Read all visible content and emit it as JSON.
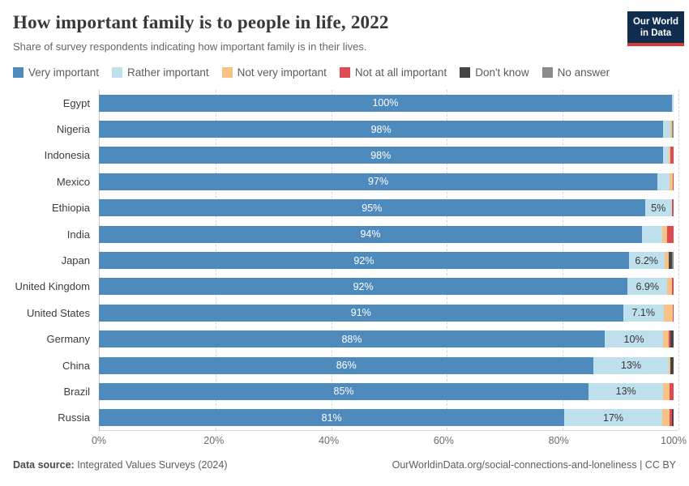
{
  "header": {
    "title": "How important family is to people in life, 2022",
    "subtitle": "Share of survey respondents indicating how important family is in their lives.",
    "logo": {
      "line1": "Our World",
      "line2": "in Data",
      "bg_color": "#102D50",
      "accent_color": "#D73C34"
    }
  },
  "legend": [
    {
      "label": "Very important",
      "color": "#4F8ABD"
    },
    {
      "label": "Rather important",
      "color": "#BEDFEC"
    },
    {
      "label": "Not very important",
      "color": "#FAC184"
    },
    {
      "label": "Not at all important",
      "color": "#DF4B50"
    },
    {
      "label": "Don't know",
      "color": "#454545"
    },
    {
      "label": "No answer",
      "color": "#8B8B8B"
    }
  ],
  "chart_data": {
    "type": "bar",
    "orientation": "horizontal",
    "stacked": true,
    "xlim": [
      0,
      100
    ],
    "grid": "dashed-vertical",
    "x_ticks": [
      {
        "label": "0%",
        "pos": 0
      },
      {
        "label": "20%",
        "pos": 20
      },
      {
        "label": "40%",
        "pos": 40
      },
      {
        "label": "60%",
        "pos": 60
      },
      {
        "label": "80%",
        "pos": 80
      },
      {
        "label": "100%",
        "pos": 100
      }
    ],
    "series_names": [
      "Very important",
      "Rather important",
      "Not very important",
      "Not at all important",
      "Don't know",
      "No answer"
    ],
    "rows": [
      {
        "country": "Egypt",
        "values": [
          99.7,
          0.3,
          0,
          0,
          0,
          0
        ],
        "bar_label": "100%",
        "secondary_label": ""
      },
      {
        "country": "Nigeria",
        "values": [
          98.2,
          1.3,
          0.2,
          0,
          0,
          0.3
        ],
        "bar_label": "98%",
        "secondary_label": ""
      },
      {
        "country": "Indonesia",
        "values": [
          98.1,
          1.1,
          0.2,
          0.6,
          0,
          0
        ],
        "bar_label": "98%",
        "secondary_label": ""
      },
      {
        "country": "Mexico",
        "values": [
          97.2,
          2.1,
          0.5,
          0.2,
          0,
          0
        ],
        "bar_label": "97%",
        "secondary_label": ""
      },
      {
        "country": "Ethiopia",
        "values": [
          95.0,
          4.7,
          0,
          0.3,
          0,
          0
        ],
        "bar_label": "95%",
        "secondary_label": "5%"
      },
      {
        "country": "India",
        "values": [
          94.5,
          3.5,
          0.9,
          1.1,
          0,
          0
        ],
        "bar_label": "94%",
        "secondary_label": ""
      },
      {
        "country": "Japan",
        "values": [
          92.2,
          6.2,
          0.7,
          0,
          0.6,
          0.3
        ],
        "bar_label": "92%",
        "secondary_label": "6.2%"
      },
      {
        "country": "United Kingdom",
        "values": [
          92.0,
          6.9,
          0.8,
          0.3,
          0,
          0
        ],
        "bar_label": "92%",
        "secondary_label": "6.9%"
      },
      {
        "country": "United States",
        "values": [
          91.2,
          7.1,
          1.5,
          0.2,
          0,
          0
        ],
        "bar_label": "91%",
        "secondary_label": "7.1%"
      },
      {
        "country": "Germany",
        "values": [
          88.0,
          10.2,
          1.0,
          0.3,
          0.5,
          0
        ],
        "bar_label": "88%",
        "secondary_label": "10%"
      },
      {
        "country": "China",
        "values": [
          86.1,
          13.0,
          0.4,
          0,
          0.5,
          0
        ],
        "bar_label": "86%",
        "secondary_label": "13%"
      },
      {
        "country": "Brazil",
        "values": [
          85.2,
          13.0,
          1.1,
          0.7,
          0,
          0
        ],
        "bar_label": "85%",
        "secondary_label": "13%"
      },
      {
        "country": "Russia",
        "values": [
          81.0,
          17.0,
          1.3,
          0.4,
          0.3,
          0
        ],
        "bar_label": "81%",
        "secondary_label": "17%"
      }
    ]
  },
  "footer": {
    "source_label": "Data source:",
    "source_text": " Integrated Values Surveys (2024)",
    "right_text": "OurWorldinData.org/social-connections-and-loneliness | CC BY"
  }
}
